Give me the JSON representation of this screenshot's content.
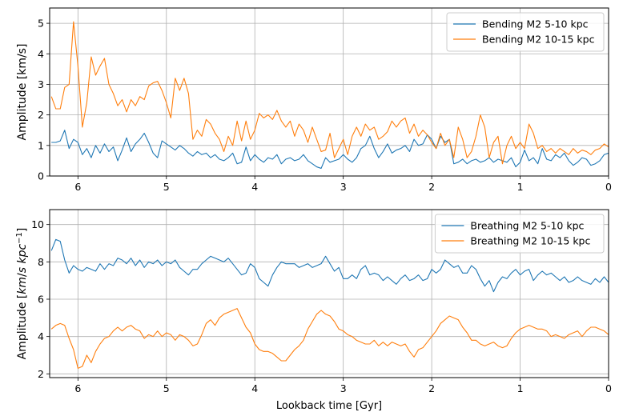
{
  "chart_data": [
    {
      "type": "line",
      "ylabel": "Amplitude [km/s]",
      "xlim": [
        6.32,
        0
      ],
      "ylim": [
        0,
        5.5
      ],
      "x_ticks": [
        6,
        5,
        4,
        3,
        2,
        1,
        0
      ],
      "y_ticks": [
        0,
        1,
        2,
        3,
        4,
        5
      ],
      "grid": true,
      "legend_position": "top-right",
      "colors": [
        "#1f77b4",
        "#ff7f0e"
      ],
      "series": [
        {
          "name": "Bending M2 5-10 kpc",
          "color": "#1f77b4",
          "x": [
            6.3,
            6.25,
            6.2,
            6.15,
            6.1,
            6.05,
            6.0,
            5.95,
            5.9,
            5.85,
            5.8,
            5.75,
            5.7,
            5.65,
            5.6,
            5.55,
            5.5,
            5.45,
            5.4,
            5.35,
            5.3,
            5.25,
            5.2,
            5.15,
            5.1,
            5.05,
            5.0,
            4.95,
            4.9,
            4.85,
            4.8,
            4.75,
            4.7,
            4.65,
            4.6,
            4.55,
            4.5,
            4.45,
            4.4,
            4.35,
            4.3,
            4.25,
            4.2,
            4.15,
            4.1,
            4.05,
            4.0,
            3.95,
            3.9,
            3.85,
            3.8,
            3.75,
            3.7,
            3.65,
            3.6,
            3.55,
            3.5,
            3.45,
            3.4,
            3.35,
            3.3,
            3.25,
            3.2,
            3.15,
            3.1,
            3.05,
            3.0,
            2.95,
            2.9,
            2.85,
            2.8,
            2.75,
            2.7,
            2.65,
            2.6,
            2.55,
            2.5,
            2.45,
            2.4,
            2.35,
            2.3,
            2.25,
            2.2,
            2.15,
            2.1,
            2.05,
            2.0,
            1.95,
            1.9,
            1.85,
            1.8,
            1.75,
            1.7,
            1.65,
            1.6,
            1.55,
            1.5,
            1.45,
            1.4,
            1.35,
            1.3,
            1.25,
            1.2,
            1.15,
            1.1,
            1.05,
            1.0,
            0.95,
            0.9,
            0.85,
            0.8,
            0.75,
            0.7,
            0.65,
            0.6,
            0.55,
            0.5,
            0.45,
            0.4,
            0.35,
            0.3,
            0.25,
            0.2,
            0.15,
            0.1,
            0.05,
            0.0
          ],
          "y": [
            1.1,
            1.1,
            1.15,
            1.5,
            0.9,
            1.2,
            1.1,
            0.7,
            0.9,
            0.6,
            1.0,
            0.75,
            1.05,
            0.8,
            0.95,
            0.5,
            0.85,
            1.25,
            0.8,
            1.05,
            1.2,
            1.4,
            1.1,
            0.75,
            0.6,
            1.15,
            1.05,
            0.95,
            0.85,
            1.0,
            0.9,
            0.75,
            0.65,
            0.8,
            0.7,
            0.75,
            0.6,
            0.7,
            0.55,
            0.5,
            0.6,
            0.75,
            0.4,
            0.45,
            0.95,
            0.5,
            0.7,
            0.55,
            0.45,
            0.6,
            0.55,
            0.7,
            0.4,
            0.55,
            0.6,
            0.5,
            0.55,
            0.7,
            0.5,
            0.4,
            0.3,
            0.25,
            0.6,
            0.45,
            0.5,
            0.55,
            0.7,
            0.55,
            0.45,
            0.6,
            0.9,
            1.0,
            1.3,
            0.9,
            0.6,
            0.8,
            1.05,
            0.75,
            0.85,
            0.9,
            1.0,
            0.8,
            1.2,
            1.0,
            1.05,
            1.35,
            1.2,
            0.9,
            1.3,
            1.1,
            1.2,
            0.4,
            0.45,
            0.55,
            0.4,
            0.5,
            0.55,
            0.45,
            0.5,
            0.6,
            0.45,
            0.55,
            0.5,
            0.45,
            0.6,
            0.3,
            0.45,
            0.85,
            0.5,
            0.6,
            0.4,
            0.9,
            0.55,
            0.5,
            0.7,
            0.6,
            0.75,
            0.5,
            0.35,
            0.45,
            0.6,
            0.55,
            0.35,
            0.4,
            0.5,
            0.7,
            0.75
          ]
        },
        {
          "name": "Bending M2 10-15 kpc",
          "color": "#ff7f0e",
          "x": [
            6.3,
            6.25,
            6.2,
            6.15,
            6.1,
            6.05,
            6.0,
            5.95,
            5.9,
            5.85,
            5.8,
            5.75,
            5.7,
            5.65,
            5.6,
            5.55,
            5.5,
            5.45,
            5.4,
            5.35,
            5.3,
            5.25,
            5.2,
            5.15,
            5.1,
            5.05,
            5.0,
            4.95,
            4.9,
            4.85,
            4.8,
            4.75,
            4.7,
            4.65,
            4.6,
            4.55,
            4.5,
            4.45,
            4.4,
            4.35,
            4.3,
            4.25,
            4.2,
            4.15,
            4.1,
            4.05,
            4.0,
            3.95,
            3.9,
            3.85,
            3.8,
            3.75,
            3.7,
            3.65,
            3.6,
            3.55,
            3.5,
            3.45,
            3.4,
            3.35,
            3.3,
            3.25,
            3.2,
            3.15,
            3.1,
            3.05,
            3.0,
            2.95,
            2.9,
            2.85,
            2.8,
            2.75,
            2.7,
            2.65,
            2.6,
            2.55,
            2.5,
            2.45,
            2.4,
            2.35,
            2.3,
            2.25,
            2.2,
            2.15,
            2.1,
            2.05,
            2.0,
            1.95,
            1.9,
            1.85,
            1.8,
            1.75,
            1.7,
            1.65,
            1.6,
            1.55,
            1.5,
            1.45,
            1.4,
            1.35,
            1.3,
            1.25,
            1.2,
            1.15,
            1.1,
            1.05,
            1.0,
            0.95,
            0.9,
            0.85,
            0.8,
            0.75,
            0.7,
            0.65,
            0.6,
            0.55,
            0.5,
            0.45,
            0.4,
            0.35,
            0.3,
            0.25,
            0.2,
            0.15,
            0.1,
            0.05,
            0.0
          ],
          "y": [
            2.6,
            2.2,
            2.2,
            2.9,
            3.0,
            5.05,
            3.6,
            1.6,
            2.4,
            3.9,
            3.3,
            3.6,
            3.85,
            3.0,
            2.7,
            2.3,
            2.5,
            2.1,
            2.5,
            2.3,
            2.6,
            2.5,
            2.95,
            3.05,
            3.1,
            2.8,
            2.4,
            1.9,
            3.2,
            2.8,
            3.2,
            2.7,
            1.2,
            1.5,
            1.3,
            1.85,
            1.7,
            1.4,
            1.2,
            0.8,
            1.3,
            1.0,
            1.8,
            1.15,
            1.8,
            1.2,
            1.5,
            2.05,
            1.9,
            2.0,
            1.85,
            2.15,
            1.8,
            1.6,
            1.8,
            1.3,
            1.7,
            1.5,
            1.1,
            1.6,
            1.2,
            0.8,
            0.85,
            1.4,
            0.6,
            0.9,
            1.2,
            0.7,
            1.3,
            1.6,
            1.3,
            1.7,
            1.5,
            1.6,
            1.2,
            1.3,
            1.45,
            1.8,
            1.6,
            1.8,
            1.9,
            1.4,
            1.7,
            1.3,
            1.5,
            1.35,
            1.1,
            0.9,
            1.4,
            1.0,
            1.2,
            0.6,
            1.6,
            1.2,
            0.6,
            0.8,
            1.3,
            2.0,
            1.6,
            0.6,
            1.1,
            1.3,
            0.4,
            1.0,
            1.3,
            0.9,
            1.1,
            0.9,
            1.7,
            1.4,
            0.9,
            1.0,
            0.8,
            0.9,
            0.75,
            0.9,
            0.8,
            0.7,
            0.9,
            0.75,
            0.85,
            0.8,
            0.7,
            0.85,
            0.9,
            1.05,
            0.95
          ]
        }
      ]
    },
    {
      "type": "line",
      "ylabel": "Amplitude [km/s kpc^-1]",
      "xlabel": "Lookback time [Gyr]",
      "xlim": [
        6.32,
        0
      ],
      "ylim": [
        1.8,
        10.8
      ],
      "x_ticks": [
        6,
        5,
        4,
        3,
        2,
        1,
        0
      ],
      "y_ticks": [
        2,
        4,
        6,
        8,
        10
      ],
      "grid": true,
      "legend_position": "top-right",
      "colors": [
        "#1f77b4",
        "#ff7f0e"
      ],
      "series": [
        {
          "name": "Breathing M2 5-10 kpc",
          "color": "#1f77b4",
          "x": [
            6.3,
            6.25,
            6.2,
            6.15,
            6.1,
            6.05,
            6.0,
            5.95,
            5.9,
            5.85,
            5.8,
            5.75,
            5.7,
            5.65,
            5.6,
            5.55,
            5.5,
            5.45,
            5.4,
            5.35,
            5.3,
            5.25,
            5.2,
            5.15,
            5.1,
            5.05,
            5.0,
            4.95,
            4.9,
            4.85,
            4.8,
            4.75,
            4.7,
            4.65,
            4.6,
            4.55,
            4.5,
            4.45,
            4.4,
            4.35,
            4.3,
            4.25,
            4.2,
            4.15,
            4.1,
            4.05,
            4.0,
            3.95,
            3.9,
            3.85,
            3.8,
            3.75,
            3.7,
            3.65,
            3.6,
            3.55,
            3.5,
            3.45,
            3.4,
            3.35,
            3.3,
            3.25,
            3.2,
            3.15,
            3.1,
            3.05,
            3.0,
            2.95,
            2.9,
            2.85,
            2.8,
            2.75,
            2.7,
            2.65,
            2.6,
            2.55,
            2.5,
            2.45,
            2.4,
            2.35,
            2.3,
            2.25,
            2.2,
            2.15,
            2.1,
            2.05,
            2.0,
            1.95,
            1.9,
            1.85,
            1.8,
            1.75,
            1.7,
            1.65,
            1.6,
            1.55,
            1.5,
            1.45,
            1.4,
            1.35,
            1.3,
            1.25,
            1.2,
            1.15,
            1.1,
            1.05,
            1.0,
            0.95,
            0.9,
            0.85,
            0.8,
            0.75,
            0.7,
            0.65,
            0.6,
            0.55,
            0.5,
            0.45,
            0.4,
            0.35,
            0.3,
            0.25,
            0.2,
            0.15,
            0.1,
            0.05,
            0.0
          ],
          "y": [
            8.6,
            9.2,
            9.1,
            8.1,
            7.4,
            7.8,
            7.6,
            7.5,
            7.7,
            7.6,
            7.5,
            7.9,
            7.6,
            7.9,
            7.8,
            8.2,
            8.1,
            7.9,
            8.2,
            7.8,
            8.1,
            7.7,
            8.0,
            7.9,
            8.1,
            7.8,
            8.0,
            7.9,
            8.1,
            7.7,
            7.5,
            7.3,
            7.6,
            7.6,
            7.9,
            8.1,
            8.3,
            8.2,
            8.1,
            8.0,
            8.2,
            7.9,
            7.6,
            7.3,
            7.4,
            7.9,
            7.7,
            7.1,
            6.9,
            6.7,
            7.3,
            7.7,
            8.0,
            7.9,
            7.9,
            7.9,
            7.7,
            7.8,
            7.9,
            7.7,
            7.8,
            7.9,
            8.3,
            7.9,
            7.5,
            7.7,
            7.1,
            7.1,
            7.3,
            7.1,
            7.6,
            7.8,
            7.3,
            7.4,
            7.3,
            7.0,
            7.2,
            7.0,
            6.8,
            7.1,
            7.3,
            7.0,
            7.1,
            7.3,
            7.0,
            7.1,
            7.6,
            7.4,
            7.6,
            8.1,
            7.9,
            7.7,
            7.8,
            7.4,
            7.4,
            7.8,
            7.6,
            7.1,
            6.7,
            7.0,
            6.4,
            6.9,
            7.2,
            7.1,
            7.4,
            7.6,
            7.3,
            7.5,
            7.6,
            7.0,
            7.3,
            7.5,
            7.3,
            7.4,
            7.2,
            7.0,
            7.2,
            6.9,
            7.0,
            7.2,
            7.0,
            6.9,
            6.8,
            7.1,
            6.9,
            7.2,
            6.9
          ]
        },
        {
          "name": "Breathing M2 10-15 kpc",
          "color": "#ff7f0e",
          "x": [
            6.3,
            6.25,
            6.2,
            6.15,
            6.1,
            6.05,
            6.0,
            5.95,
            5.9,
            5.85,
            5.8,
            5.75,
            5.7,
            5.65,
            5.6,
            5.55,
            5.5,
            5.45,
            5.4,
            5.35,
            5.3,
            5.25,
            5.2,
            5.15,
            5.1,
            5.05,
            5.0,
            4.95,
            4.9,
            4.85,
            4.8,
            4.75,
            4.7,
            4.65,
            4.6,
            4.55,
            4.5,
            4.45,
            4.4,
            4.35,
            4.3,
            4.25,
            4.2,
            4.15,
            4.1,
            4.05,
            4.0,
            3.95,
            3.9,
            3.85,
            3.8,
            3.75,
            3.7,
            3.65,
            3.6,
            3.55,
            3.5,
            3.45,
            3.4,
            3.35,
            3.3,
            3.25,
            3.2,
            3.15,
            3.1,
            3.05,
            3.0,
            2.95,
            2.9,
            2.85,
            2.8,
            2.75,
            2.7,
            2.65,
            2.6,
            2.55,
            2.5,
            2.45,
            2.4,
            2.35,
            2.3,
            2.25,
            2.2,
            2.15,
            2.1,
            2.05,
            2.0,
            1.95,
            1.9,
            1.85,
            1.8,
            1.75,
            1.7,
            1.65,
            1.6,
            1.55,
            1.5,
            1.45,
            1.4,
            1.35,
            1.3,
            1.25,
            1.2,
            1.15,
            1.1,
            1.05,
            1.0,
            0.95,
            0.9,
            0.85,
            0.8,
            0.75,
            0.7,
            0.65,
            0.6,
            0.55,
            0.5,
            0.45,
            0.4,
            0.35,
            0.3,
            0.25,
            0.2,
            0.15,
            0.1,
            0.05,
            0.0
          ],
          "y": [
            4.4,
            4.6,
            4.7,
            4.6,
            3.9,
            3.3,
            2.3,
            2.4,
            3.0,
            2.6,
            3.2,
            3.6,
            3.9,
            4.0,
            4.3,
            4.5,
            4.3,
            4.5,
            4.6,
            4.4,
            4.3,
            3.9,
            4.1,
            4.0,
            4.3,
            4.0,
            4.2,
            4.1,
            3.8,
            4.1,
            4.0,
            3.8,
            3.5,
            3.6,
            4.1,
            4.7,
            4.9,
            4.6,
            5.0,
            5.2,
            5.3,
            5.4,
            5.5,
            5.0,
            4.5,
            4.2,
            3.6,
            3.3,
            3.2,
            3.2,
            3.1,
            2.9,
            2.7,
            2.7,
            3.0,
            3.3,
            3.5,
            3.8,
            4.4,
            4.8,
            5.2,
            5.4,
            5.2,
            5.1,
            4.8,
            4.4,
            4.3,
            4.1,
            4.0,
            3.8,
            3.7,
            3.6,
            3.6,
            3.8,
            3.5,
            3.7,
            3.5,
            3.7,
            3.6,
            3.5,
            3.6,
            3.2,
            2.9,
            3.3,
            3.4,
            3.7,
            4.0,
            4.3,
            4.7,
            4.9,
            5.1,
            5.0,
            4.9,
            4.5,
            4.2,
            3.8,
            3.8,
            3.6,
            3.5,
            3.6,
            3.7,
            3.5,
            3.4,
            3.5,
            3.9,
            4.2,
            4.4,
            4.5,
            4.6,
            4.5,
            4.4,
            4.4,
            4.3,
            4.0,
            4.1,
            4.0,
            3.9,
            4.1,
            4.2,
            4.3,
            4.0,
            4.3,
            4.5,
            4.5,
            4.4,
            4.3,
            4.1
          ]
        }
      ]
    }
  ]
}
